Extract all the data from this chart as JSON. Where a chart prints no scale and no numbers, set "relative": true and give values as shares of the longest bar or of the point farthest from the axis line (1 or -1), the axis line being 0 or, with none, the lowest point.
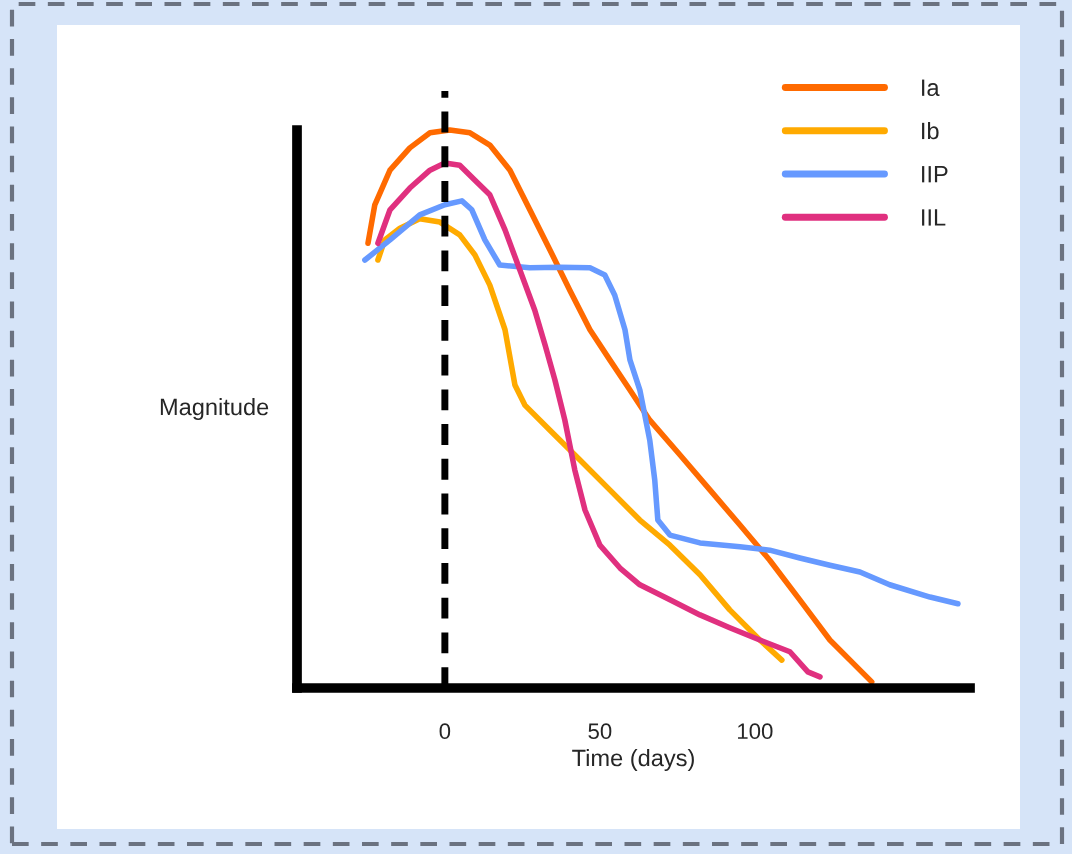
{
  "chart_data": {
    "type": "line",
    "xlabel": "Time (days)",
    "ylabel": "Magnitude",
    "relative": true,
    "legend": "top right",
    "xlim": [
      -47.7,
      169.4
    ],
    "xticks": [
      0,
      50,
      100
    ],
    "ref_lines": [
      {
        "axis": "x",
        "value": 0,
        "color": "#000000",
        "line_style": "dashed"
      }
    ],
    "series": [
      {
        "name": "Ia",
        "color": "#ff6a00",
        "x": [
          -24.8,
          -22.6,
          -17.7,
          -11.3,
          -4.8,
          1.6,
          8.1,
          14.5,
          21.0,
          27.4,
          33.9,
          40.3,
          46.8,
          53.2,
          59.7,
          66.1,
          75.8,
          85.5,
          95.2,
          104.8,
          114.5,
          124.2,
          132.3,
          137.7
        ],
        "values": [
          0.797,
          0.866,
          0.928,
          0.968,
          0.995,
          1.0,
          0.995,
          0.973,
          0.928,
          0.857,
          0.785,
          0.713,
          0.642,
          0.588,
          0.534,
          0.48,
          0.418,
          0.355,
          0.292,
          0.229,
          0.158,
          0.086,
          0.041,
          0.011
        ]
      },
      {
        "name": "Ib",
        "color": "#ffaa00",
        "x": [
          -21.6,
          -19.4,
          -14.5,
          -8.1,
          -1.6,
          4.8,
          9.7,
          14.5,
          19.4,
          22.6,
          25.8,
          33.9,
          43.5,
          53.2,
          62.9,
          72.6,
          82.3,
          91.9,
          101.6,
          108.7
        ],
        "values": [
          0.767,
          0.803,
          0.824,
          0.841,
          0.835,
          0.812,
          0.776,
          0.722,
          0.642,
          0.543,
          0.507,
          0.462,
          0.409,
          0.355,
          0.301,
          0.256,
          0.203,
          0.14,
          0.086,
          0.05
        ]
      },
      {
        "name": "IIP",
        "color": "#6699ff",
        "x": [
          -25.8,
          -17.7,
          -8.1,
          0,
          5.5,
          8.7,
          12.9,
          17.7,
          27.4,
          37.1,
          46.8,
          51.6,
          54.8,
          58.1,
          59.7,
          62.9,
          66.1,
          67.7,
          68.7,
          72.6,
          82.3,
          95.2,
          104.8,
          114.5,
          124.2,
          133.9,
          143.5,
          156.5,
          165.5
        ],
        "values": [
          0.767,
          0.803,
          0.848,
          0.866,
          0.873,
          0.857,
          0.803,
          0.758,
          0.753,
          0.754,
          0.753,
          0.74,
          0.704,
          0.642,
          0.588,
          0.534,
          0.444,
          0.373,
          0.301,
          0.274,
          0.26,
          0.253,
          0.247,
          0.233,
          0.22,
          0.208,
          0.185,
          0.163,
          0.151
        ]
      },
      {
        "name": "IIL",
        "color": "#e0307f",
        "x": [
          -21.6,
          -17.7,
          -11.3,
          -4.8,
          0,
          4.8,
          9.7,
          14.5,
          19.4,
          24.2,
          29.0,
          32.3,
          35.5,
          38.7,
          41.9,
          45.2,
          50.0,
          56.5,
          62.9,
          72.6,
          82.3,
          91.9,
          101.6,
          111.3,
          117.1,
          121.0
        ],
        "values": [
          0.797,
          0.857,
          0.896,
          0.928,
          0.941,
          0.937,
          0.91,
          0.884,
          0.821,
          0.749,
          0.677,
          0.615,
          0.552,
          0.48,
          0.391,
          0.319,
          0.256,
          0.215,
          0.185,
          0.158,
          0.131,
          0.108,
          0.086,
          0.065,
          0.029,
          0.02
        ]
      }
    ]
  }
}
